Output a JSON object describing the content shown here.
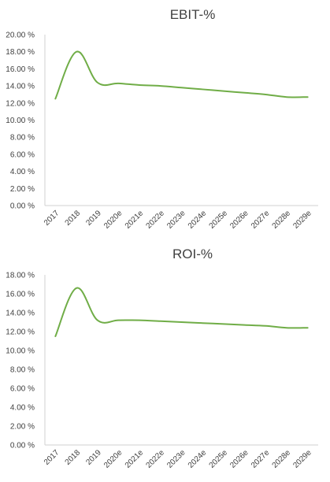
{
  "chart_data": [
    {
      "type": "line",
      "title": "EBIT-%",
      "categories": [
        "2017",
        "2018",
        "2019",
        "2020e",
        "2021e",
        "2022e",
        "2023e",
        "2024e",
        "2025e",
        "2026e",
        "2027e",
        "2028e",
        "2029e"
      ],
      "series": [
        {
          "values": [
            12.5,
            18.0,
            14.4,
            14.3,
            14.1,
            14.0,
            13.8,
            13.6,
            13.4,
            13.2,
            13.0,
            12.7,
            12.7
          ],
          "color": "#70ad47"
        }
      ],
      "ylim": [
        0,
        20
      ],
      "yticks": [
        "0.00 %",
        "2.00 %",
        "4.00 %",
        "6.00 %",
        "8.00 %",
        "10.00 %",
        "12.00 %",
        "14.00 %",
        "16.00 %",
        "18.00 %",
        "20.00 %"
      ],
      "grid": false,
      "xlabel": "",
      "ylabel": ""
    },
    {
      "type": "line",
      "title": "ROI-%",
      "categories": [
        "2017",
        "2018",
        "2019",
        "2020e",
        "2021e",
        "2022e",
        "2023e",
        "2024e",
        "2025e",
        "2026e",
        "2027e",
        "2028e",
        "2029e"
      ],
      "series": [
        {
          "values": [
            11.5,
            16.6,
            13.2,
            13.2,
            13.2,
            13.1,
            13.0,
            12.9,
            12.8,
            12.7,
            12.6,
            12.4,
            12.4
          ],
          "color": "#70ad47"
        }
      ],
      "ylim": [
        0,
        18
      ],
      "yticks": [
        "0.00 %",
        "2.00 %",
        "4.00 %",
        "6.00 %",
        "8.00 %",
        "10.00 %",
        "12.00 %",
        "14.00 %",
        "16.00 %",
        "18.00 %"
      ],
      "grid": false,
      "xlabel": "",
      "ylabel": ""
    }
  ]
}
